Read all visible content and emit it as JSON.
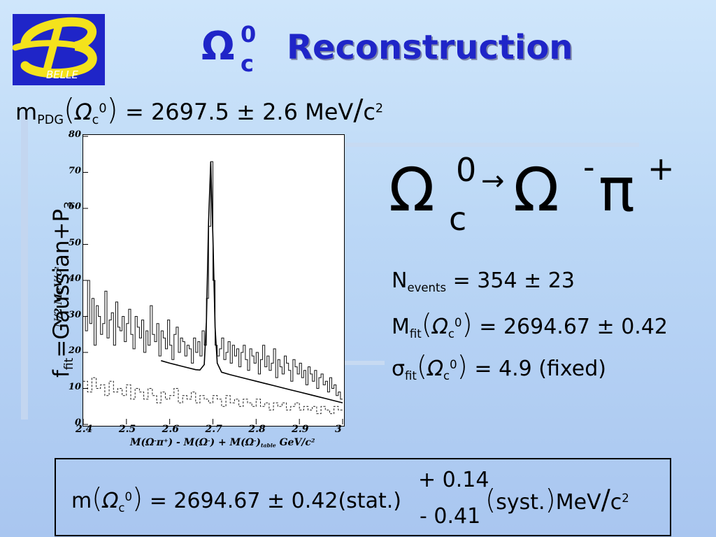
{
  "logo": {
    "text": "BELLE"
  },
  "title": {
    "symbol": "Ω",
    "superscript": "0",
    "subscript": "c",
    "word": "Reconstruction"
  },
  "pdg_mass": {
    "m": "m",
    "sub": "PDG",
    "omega": "Ω",
    "omega_sub": "c",
    "omega_sup": "0",
    "equals_value": "= 2697.5 ± 2.6 MeV",
    "slash": "/",
    "c": "c",
    "c_sup": "2"
  },
  "fit_function": {
    "f": "f",
    "sub": "fit",
    "rest": "=Gaussian+P",
    "p_sub": "3"
  },
  "decay": {
    "omega1": "Ω",
    "sup0": "0",
    "subc": "c",
    "arrow": "→",
    "omega2": "Ω",
    "minus": "-",
    "pi": "π",
    "plus": "+"
  },
  "results": {
    "n_events": {
      "label": "N",
      "sub": "events",
      "value": "= 354 ± 23"
    },
    "m_fit": {
      "label": "M",
      "sub": "fit",
      "omega": "Ω",
      "omega_sub": "c",
      "omega_sup": "0",
      "value": "= 2694.67 ± 0.42"
    },
    "sigma_fit": {
      "label": "σ",
      "sub": "fit",
      "omega": "Ω",
      "omega_sub": "c",
      "omega_sup": "0",
      "value": "= 4.9 (fixed)"
    }
  },
  "final_result": {
    "m": "m",
    "omega": "Ω",
    "omega_sub": "c",
    "omega_sup": "0",
    "value": "= 2694.67 ± 0.42(stat.)",
    "plus": "+ 0.14",
    "minus": "- 0.41",
    "syst": "syst.",
    "unit": "MeV",
    "slash": "/",
    "c": "c",
    "c_sup": "2"
  },
  "colors": {
    "title_blue": "#1f25c8",
    "logo_yellow": "#f4e21c"
  },
  "chart_data": {
    "type": "line",
    "xlabel_parts": [
      "M(Ω",
      "-",
      "π",
      "+",
      ") - M(Ω",
      "-",
      ") + M(Ω",
      "-",
      ")",
      "table",
      " GeV/c",
      "2"
    ],
    "ylabel": "N/2 MeV/c",
    "ylabel_sup": "2",
    "xlim": [
      2.4,
      3.0
    ],
    "ylim": [
      0,
      80
    ],
    "x_ticks": [
      "2.4",
      "2.5",
      "2.6",
      "2.7",
      "2.8",
      "2.9",
      "3"
    ],
    "y_ticks": [
      "0",
      "10",
      "20",
      "30",
      "40",
      "50",
      "60",
      "70",
      "80"
    ],
    "series": [
      {
        "style": "solid",
        "x": [
          2.4,
          2.405,
          2.41,
          2.415,
          2.42,
          2.425,
          2.43,
          2.435,
          2.44,
          2.445,
          2.45,
          2.455,
          2.46,
          2.465,
          2.47,
          2.475,
          2.48,
          2.485,
          2.49,
          2.495,
          2.5,
          2.505,
          2.51,
          2.515,
          2.52,
          2.525,
          2.53,
          2.535,
          2.54,
          2.545,
          2.55,
          2.555,
          2.56,
          2.565,
          2.57,
          2.575,
          2.58,
          2.585,
          2.59,
          2.595,
          2.6,
          2.605,
          2.61,
          2.615,
          2.62,
          2.625,
          2.63,
          2.635,
          2.64,
          2.645,
          2.65,
          2.655,
          2.66,
          2.665,
          2.67,
          2.675,
          2.68,
          2.685,
          2.69,
          2.695,
          2.7,
          2.705,
          2.71,
          2.715,
          2.72,
          2.725,
          2.73,
          2.735,
          2.74,
          2.745,
          2.75,
          2.755,
          2.76,
          2.765,
          2.77,
          2.775,
          2.78,
          2.785,
          2.79,
          2.795,
          2.8,
          2.805,
          2.81,
          2.815,
          2.82,
          2.825,
          2.83,
          2.835,
          2.84,
          2.845,
          2.85,
          2.855,
          2.86,
          2.865,
          2.87,
          2.875,
          2.88,
          2.885,
          2.89,
          2.895,
          2.9,
          2.905,
          2.91,
          2.915,
          2.92,
          2.925,
          2.93,
          2.935,
          2.94,
          2.945,
          2.95,
          2.955,
          2.96,
          2.965,
          2.97,
          2.975,
          2.98,
          2.985,
          2.99,
          2.995
        ],
        "y": [
          30,
          26,
          40,
          28,
          35,
          22,
          33,
          30,
          25,
          28,
          37,
          24,
          29,
          31,
          22,
          34,
          27,
          26,
          30,
          23,
          28,
          32,
          25,
          21,
          30,
          27,
          24,
          29,
          20,
          26,
          22,
          33,
          25,
          23,
          28,
          19,
          26,
          24,
          21,
          29,
          22,
          18,
          25,
          27,
          20,
          24,
          23,
          19,
          22,
          21,
          17,
          24,
          20,
          23,
          19,
          26,
          22,
          35,
          55,
          73,
          40,
          22,
          19,
          21,
          24,
          18,
          20,
          23,
          17,
          22,
          19,
          21,
          16,
          20,
          22,
          18,
          15,
          21,
          19,
          17,
          20,
          14,
          18,
          22,
          16,
          19,
          15,
          17,
          21,
          13,
          18,
          16,
          14,
          19,
          17,
          15,
          12,
          18,
          16,
          14,
          17,
          13,
          15,
          11,
          16,
          14,
          12,
          15,
          10,
          13,
          14,
          11,
          12,
          9,
          13,
          10,
          11,
          8,
          9,
          7
        ]
      },
      {
        "style": "dashed",
        "x": [
          2.4,
          2.41,
          2.42,
          2.43,
          2.44,
          2.45,
          2.46,
          2.47,
          2.48,
          2.49,
          2.5,
          2.51,
          2.52,
          2.53,
          2.54,
          2.55,
          2.56,
          2.57,
          2.58,
          2.59,
          2.6,
          2.61,
          2.62,
          2.63,
          2.64,
          2.65,
          2.66,
          2.67,
          2.68,
          2.69,
          2.7,
          2.71,
          2.72,
          2.73,
          2.74,
          2.75,
          2.76,
          2.77,
          2.78,
          2.79,
          2.8,
          2.81,
          2.82,
          2.83,
          2.84,
          2.85,
          2.86,
          2.87,
          2.88,
          2.89,
          2.9,
          2.91,
          2.92,
          2.93,
          2.94,
          2.95,
          2.96,
          2.97,
          2.98,
          2.99
        ],
        "y": [
          12,
          9,
          13,
          10,
          11,
          8,
          12,
          9,
          10,
          8,
          11,
          7,
          10,
          9,
          7,
          10,
          8,
          6,
          9,
          7,
          8,
          10,
          6,
          8,
          7,
          9,
          6,
          8,
          7,
          6,
          8,
          7,
          5,
          8,
          6,
          7,
          5,
          7,
          6,
          5,
          7,
          5,
          6,
          4,
          6,
          5,
          6,
          4,
          5,
          6,
          4,
          5,
          4,
          5,
          3,
          5,
          4,
          3,
          5,
          4
        ]
      },
      {
        "style": "fit",
        "x": [
          2.58,
          2.6,
          2.62,
          2.64,
          2.66,
          2.67,
          2.68,
          2.685,
          2.69,
          2.695,
          2.7,
          2.705,
          2.71,
          2.72,
          2.74,
          2.76,
          2.78,
          2.8,
          2.82,
          2.84,
          2.86,
          2.88,
          2.9,
          2.92,
          2.94,
          2.96,
          2.98,
          3.0
        ],
        "y": [
          17.7,
          17.0,
          16.4,
          15.8,
          15.2,
          15.1,
          16.6,
          28.5,
          56.2,
          73.0,
          52.0,
          27.0,
          17.0,
          14.5,
          13.8,
          13.2,
          12.6,
          12.0,
          11.4,
          10.8,
          10.2,
          9.6,
          9.0,
          8.4,
          7.8,
          7.2,
          6.6,
          6.0
        ]
      }
    ]
  }
}
